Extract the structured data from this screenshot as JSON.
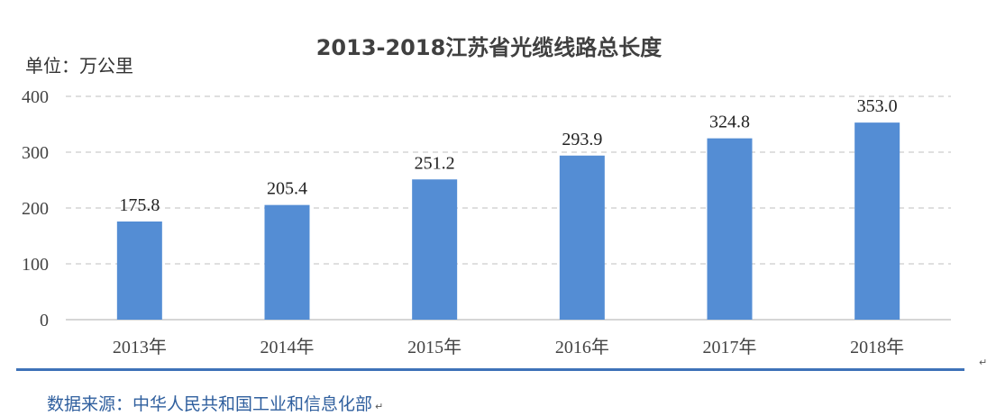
{
  "chart_data": {
    "type": "bar",
    "title": "2013-2018江苏省光缆线路总长度",
    "unit_label": "单位：万公里",
    "categories": [
      "2013年",
      "2014年",
      "2015年",
      "2016年",
      "2017年",
      "2018年"
    ],
    "values": [
      175.8,
      205.4,
      251.2,
      293.9,
      324.8,
      353.0
    ],
    "data_labels": [
      "175.8",
      "205.4",
      "251.2",
      "293.9",
      "324.8",
      "353.0"
    ],
    "ylim": [
      0,
      400
    ],
    "yticks": [
      "0",
      "100",
      "200",
      "300",
      "400"
    ],
    "grid": true,
    "bar_color": "#548DD4"
  },
  "source_text": "数据来源：中华人民共和国工业和信息化部",
  "paragraph_mark": "↵"
}
